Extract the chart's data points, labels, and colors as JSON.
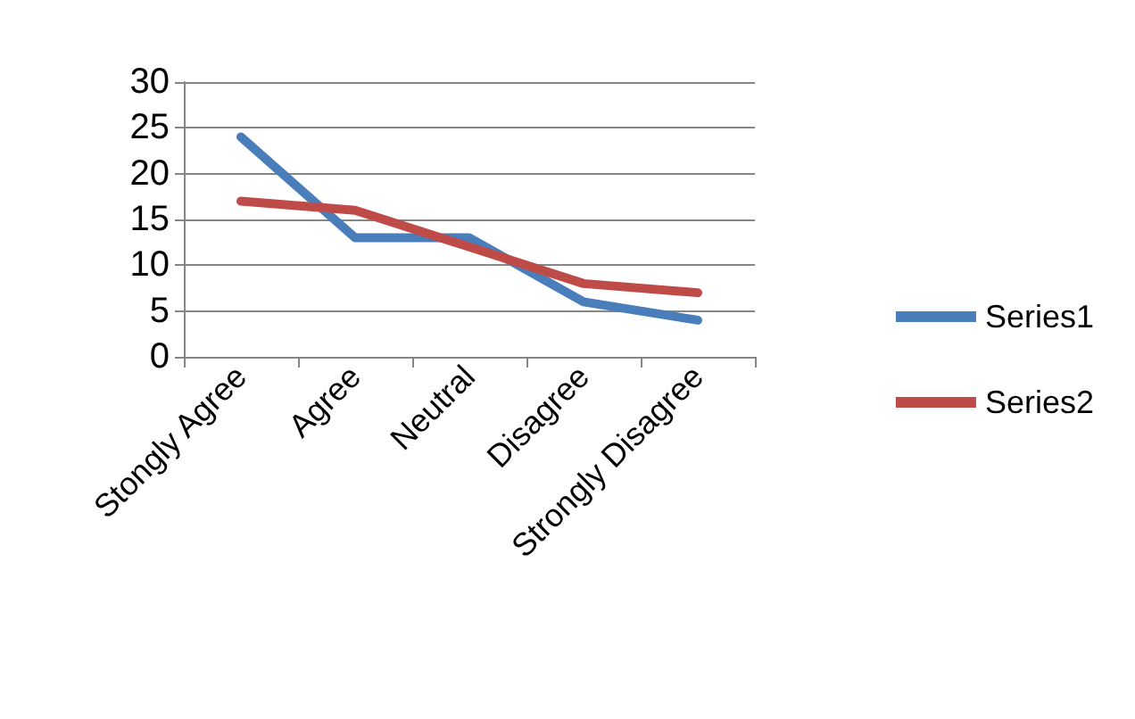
{
  "chart_data": {
    "type": "line",
    "categories": [
      "Stongly Agree",
      "Agree",
      "Neutral",
      "Disagree",
      "Strongly Disagree"
    ],
    "series": [
      {
        "name": "Series1",
        "color": "#4a7ebb",
        "values": [
          24,
          13,
          13,
          6,
          4
        ]
      },
      {
        "name": "Series2",
        "color": "#be4b48",
        "values": [
          17,
          16,
          12,
          8,
          7
        ]
      }
    ],
    "ylim": [
      0,
      30
    ],
    "yticks": [
      0,
      5,
      10,
      15,
      20,
      25,
      30
    ],
    "grid": "y",
    "legend": "right",
    "marker": "none",
    "line_style": "solid"
  }
}
